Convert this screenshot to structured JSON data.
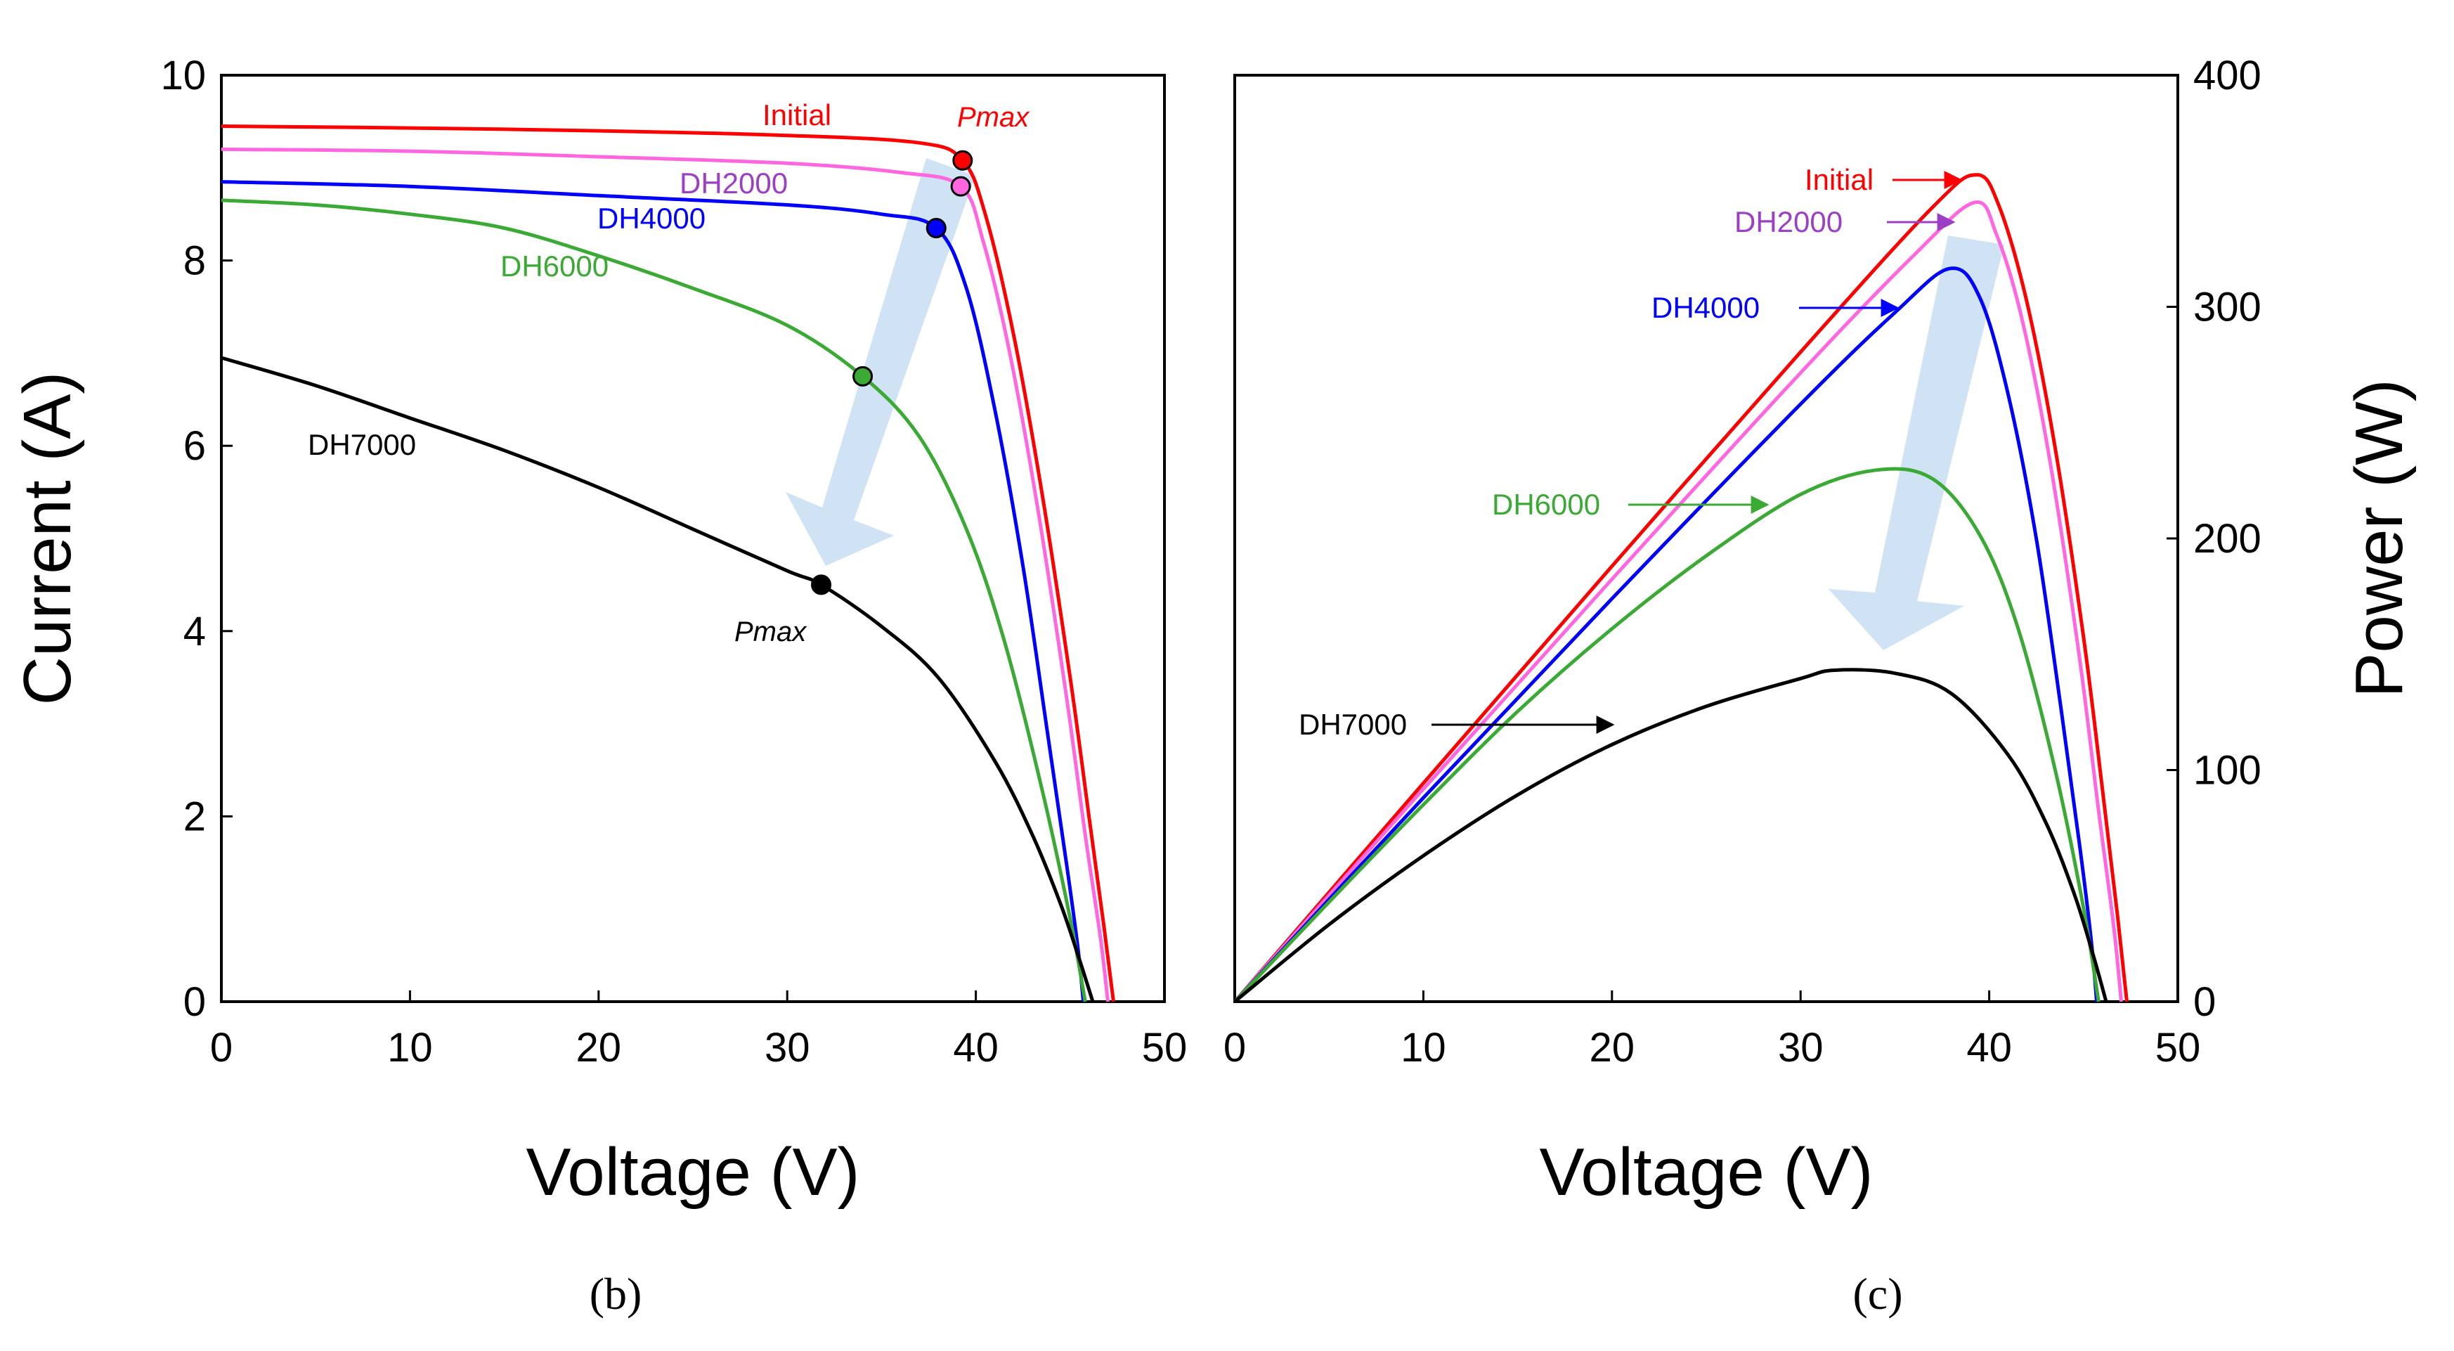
{
  "chart_data": [
    {
      "type": "line",
      "panel_label": "(b)",
      "xlabel": "Voltage (V)",
      "ylabel": "Current (A)",
      "xlim": [
        0,
        50
      ],
      "ylim": [
        0,
        10
      ],
      "xticks": [
        "0",
        "10",
        "20",
        "30",
        "40",
        "50"
      ],
      "yticks": [
        "0",
        "2",
        "4",
        "6",
        "8",
        "10"
      ],
      "grid": false,
      "pmax_label": "Pmax",
      "arrow_color": "#cfe3f5",
      "series": [
        {
          "name": "Initial",
          "color": "#ff0000",
          "x": [
            0,
            10,
            20,
            30,
            37,
            39.3,
            40.5,
            42,
            43.5,
            45,
            46,
            46.8,
            47.3
          ],
          "y": [
            9.45,
            9.43,
            9.4,
            9.35,
            9.27,
            9.08,
            8.5,
            7.2,
            5.5,
            3.5,
            2.0,
            0.8,
            0
          ],
          "pmax": {
            "v": 39.3,
            "i": 9.08
          }
        },
        {
          "name": "DH2000",
          "color": "#ff66e0",
          "label_color": "#9b3fc6",
          "x": [
            0,
            10,
            20,
            30,
            36,
            39.2,
            40.4,
            41.8,
            43.3,
            44.8,
            45.8,
            46.6,
            47.0
          ],
          "y": [
            9.2,
            9.18,
            9.12,
            9.05,
            8.95,
            8.8,
            8.2,
            7.0,
            5.3,
            3.3,
            1.8,
            0.7,
            0
          ],
          "pmax": {
            "v": 39.2,
            "i": 8.8
          }
        },
        {
          "name": "DH4000",
          "color": "#0000ff",
          "x": [
            0,
            10,
            20,
            30,
            35,
            37.9,
            39.5,
            41,
            42.5,
            43.8,
            44.8,
            45.4,
            45.7
          ],
          "y": [
            8.85,
            8.8,
            8.7,
            8.6,
            8.5,
            8.35,
            7.7,
            6.4,
            4.7,
            2.9,
            1.5,
            0.6,
            0
          ],
          "pmax": {
            "v": 37.9,
            "i": 8.35
          }
        },
        {
          "name": "DH6000",
          "color": "#3aaa35",
          "x": [
            0,
            5,
            10,
            15,
            20,
            25,
            30,
            34,
            37,
            39.5,
            41.5,
            43.5,
            45,
            45.8
          ],
          "y": [
            8.65,
            8.6,
            8.5,
            8.35,
            8.05,
            7.7,
            7.3,
            6.75,
            6.1,
            5.1,
            3.9,
            2.3,
            0.9,
            0
          ],
          "pmax": {
            "v": 34,
            "i": 6.75
          }
        },
        {
          "name": "DH7000",
          "color": "#000000",
          "x": [
            0,
            5,
            10,
            15,
            20,
            25,
            30,
            31.8,
            35,
            38,
            41,
            43,
            44.5,
            45.5,
            46.2
          ],
          "y": [
            6.95,
            6.65,
            6.3,
            5.95,
            5.55,
            5.1,
            4.65,
            4.5,
            4.05,
            3.5,
            2.6,
            1.8,
            1.05,
            0.45,
            0
          ],
          "pmax": {
            "v": 31.8,
            "i": 4.5
          }
        }
      ]
    },
    {
      "type": "line",
      "panel_label": "(c)",
      "xlabel": "Voltage (V)",
      "ylabel": "Power (W)",
      "xlim": [
        0,
        50
      ],
      "ylim": [
        0,
        400
      ],
      "xticks": [
        "0",
        "10",
        "20",
        "30",
        "40",
        "50"
      ],
      "yticks": [
        "0",
        "100",
        "200",
        "300",
        "400"
      ],
      "grid": false,
      "arrow_color": "#cfe3f5",
      "series": [
        {
          "name": "Initial",
          "color": "#ff0000",
          "x": [
            0,
            10,
            20,
            30,
            37,
            39.3,
            40.5,
            42,
            43.5,
            45,
            46,
            46.8,
            47.3
          ],
          "y": [
            0,
            94.3,
            188,
            280.5,
            343,
            357,
            344,
            302,
            239,
            157.5,
            92,
            37.4,
            0
          ]
        },
        {
          "name": "DH2000",
          "color": "#ff66e0",
          "label_color": "#9b3fc6",
          "x": [
            0,
            10,
            20,
            30,
            36,
            39.2,
            40.4,
            41.8,
            43.3,
            44.8,
            45.8,
            46.6,
            47.0
          ],
          "y": [
            0,
            91.8,
            182.4,
            271.5,
            322.2,
            345,
            331,
            292.6,
            229.5,
            147.8,
            82.4,
            32.6,
            0
          ]
        },
        {
          "name": "DH4000",
          "color": "#0000ff",
          "x": [
            0,
            10,
            20,
            30,
            35,
            37.9,
            39.5,
            41,
            42.5,
            43.8,
            44.8,
            45.4,
            45.7
          ],
          "y": [
            0,
            88,
            174,
            258,
            297.5,
            316.5,
            304,
            262.4,
            199.8,
            127,
            67.2,
            27.2,
            0
          ]
        },
        {
          "name": "DH6000",
          "color": "#3aaa35",
          "x": [
            0,
            5,
            10,
            15,
            20,
            25,
            30,
            34,
            37,
            39.5,
            41.5,
            43.5,
            45,
            45.8
          ],
          "y": [
            0,
            43,
            85,
            125.3,
            161,
            192.5,
            219,
            229.5,
            225.7,
            201.5,
            161.9,
            100,
            40.5,
            0
          ]
        },
        {
          "name": "DH7000",
          "color": "#000000",
          "x": [
            0,
            5,
            10,
            15,
            20,
            25,
            30,
            31.8,
            35,
            38,
            41,
            43,
            44.5,
            45.5,
            46.2
          ],
          "y": [
            0,
            33.3,
            63,
            89.3,
            111,
            127.5,
            139.5,
            143.1,
            141.8,
            133,
            106.6,
            77.4,
            46.7,
            20.5,
            0
          ]
        }
      ]
    }
  ]
}
